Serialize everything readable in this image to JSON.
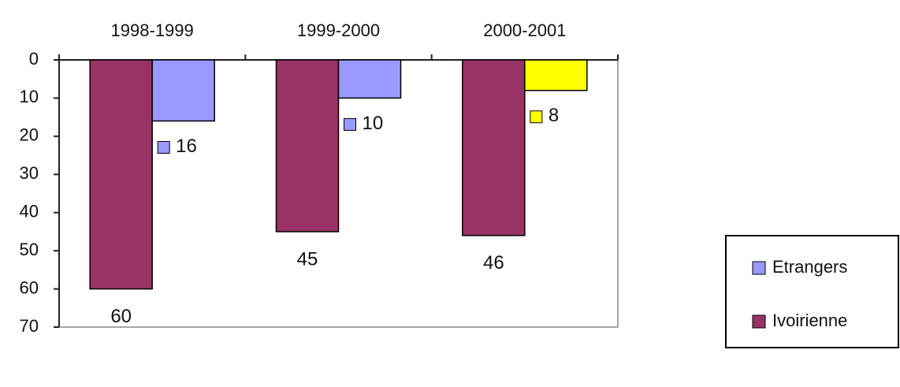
{
  "chart_data": {
    "type": "bar",
    "title": "",
    "xlabel": "",
    "ylabel": "",
    "categories": [
      "1998-1999",
      "1999-2000",
      "2000-2001"
    ],
    "series": [
      {
        "name": "Ivoirienne",
        "values": [
          60,
          45,
          46
        ],
        "color": "#993366"
      },
      {
        "name": "Etrangers",
        "values": [
          16,
          10,
          8
        ],
        "color": "#9999ff",
        "point_colors": [
          "#9999ff",
          "#9999ff",
          "#ffff00"
        ]
      }
    ],
    "ylim": [
      0,
      70
    ],
    "yticks": [
      0,
      10,
      20,
      30,
      40,
      50,
      60,
      70
    ],
    "y_axis_inverted": true,
    "category_labels_position": "top",
    "grid": false,
    "legend_position": "right",
    "data_labels": true,
    "image_mirrored": true
  }
}
